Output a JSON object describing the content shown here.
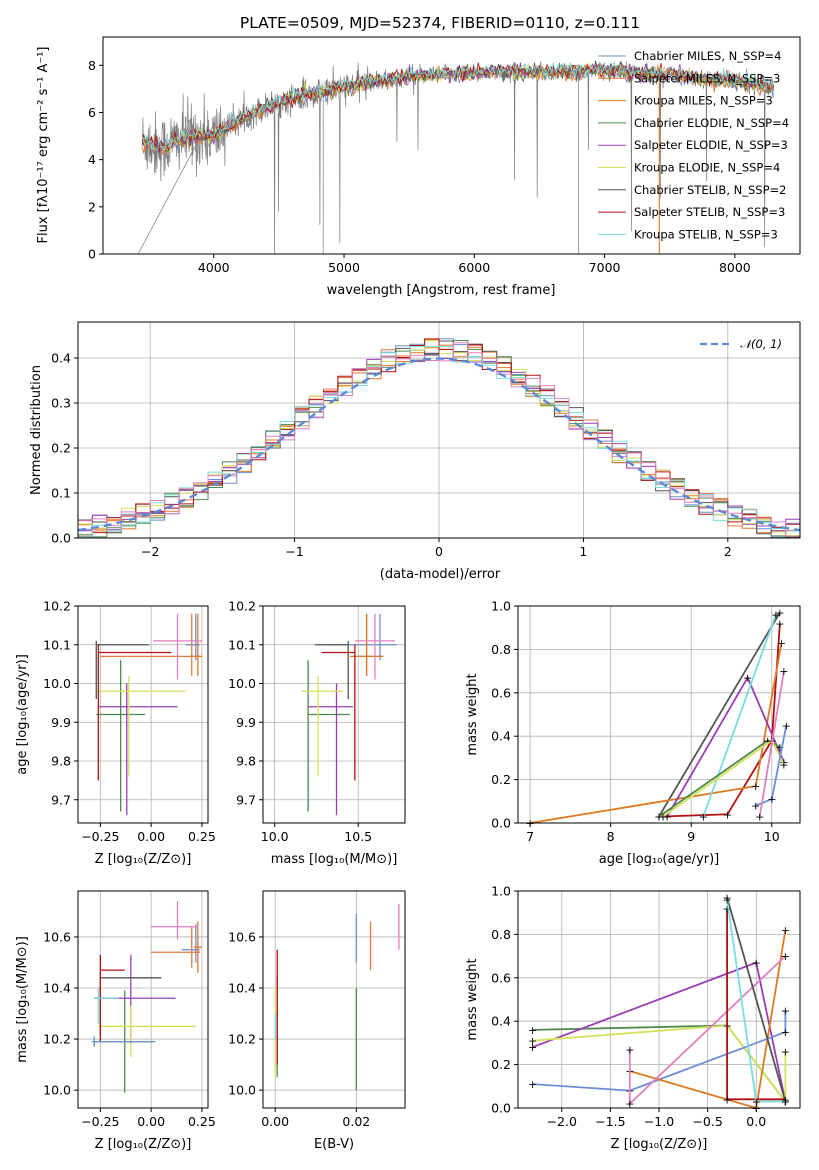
{
  "title": "PLATE=0509, MJD=52374, FIBERID=0110, z=0.111",
  "colors": {
    "chabrier_miles": "#6a8fd6",
    "salpeter_miles": "#e9793b",
    "kroupa_miles": "#dd7a22",
    "chabrier_elodie": "#4e8a4e",
    "salpeter_elodie": "#9a3db5",
    "kroupa_elodie": "#d5e15a",
    "chabrier_stelib": "#555555",
    "salpeter_stelib": "#b01010",
    "kroupa_stelib": "#79dde0",
    "data": "#7a7a7a",
    "normal": "#5b8ad6",
    "pink": "#e37fbf"
  },
  "chart_data": [
    {
      "type": "line",
      "xlabel": "wavelength [Angstrom, rest frame]",
      "ylabel": "Flux [fλ10⁻¹⁷ erg cm⁻² s⁻¹ A⁻¹]",
      "xlim": [
        3150,
        8500
      ],
      "ylim": [
        0,
        9.2
      ],
      "xticks": [
        "4000",
        "5000",
        "6000",
        "7000",
        "8000"
      ],
      "yticks": [
        "0",
        "2",
        "4",
        "6",
        "8"
      ],
      "legend_position": "upper-right",
      "legend": [
        "Chabrier MILES, N_SSP=4",
        "Salpeter MILES, N_SSP=3",
        "Kroupa MILES, N_SSP=3",
        "Chabrier ELODIE, N_SSP=4",
        "Salpeter ELODIE, N_SSP=3",
        "Kroupa ELODIE, N_SSP=4",
        "Chabrier STELIB, N_SSP=2",
        "Salpeter STELIB, N_SSP=3",
        "Kroupa STELIB, N_SSP=3"
      ],
      "continuum": {
        "x": [
          3450,
          3600,
          3800,
          4000,
          4300,
          4600,
          5000,
          5500,
          6000,
          6500,
          7000,
          7500,
          8000,
          8300
        ],
        "y": [
          4.8,
          4.5,
          5.0,
          5.0,
          6.0,
          6.6,
          7.1,
          7.5,
          7.7,
          7.7,
          7.8,
          7.6,
          7.3,
          7.1
        ]
      }
    },
    {
      "type": "histogram",
      "xlabel": "(data-model)/error",
      "ylabel": "Normed distribution",
      "xlim": [
        -2.5,
        2.5
      ],
      "ylim": [
        0,
        0.48
      ],
      "xticks": [
        "−2",
        "−1",
        "0",
        "1",
        "2"
      ],
      "yticks": [
        "0.0",
        "0.1",
        "0.2",
        "0.3",
        "0.4"
      ],
      "grid": true,
      "legend": "𝒩(0, 1)",
      "bin_width": 0.1
    },
    {
      "type": "errorbar",
      "xlabel": "Z [log₁₀(Z/Z⊙)]",
      "ylabel": "age  [log₁₀(age/yr)]",
      "xlim": [
        -0.36,
        0.28
      ],
      "ylim": [
        9.64,
        10.2
      ],
      "xticks": [
        "−0.25",
        "0.00",
        "0.25"
      ],
      "yticks": [
        "9.7",
        "9.8",
        "9.9",
        "10.0",
        "10.1",
        "10.2"
      ],
      "grid": true,
      "points": [
        {
          "x": 0.22,
          "y": 10.1,
          "xerr": [
            0.05,
            0.02
          ],
          "yerr": [
            0.04,
            0.08
          ],
          "c": "chabrier_miles"
        },
        {
          "x": 0.2,
          "y": 10.07,
          "xerr": [
            0.45,
            0.04
          ],
          "yerr": [
            0.05,
            0.11
          ],
          "c": "salpeter_miles"
        },
        {
          "x": 0.23,
          "y": 10.07,
          "xerr": [
            0.03,
            0.02
          ],
          "yerr": [
            0.05,
            0.11
          ],
          "c": "kroupa_miles"
        },
        {
          "x": -0.15,
          "y": 9.92,
          "xerr": [
            0.12,
            0.12
          ],
          "yerr": [
            0.25,
            0.14
          ],
          "c": "chabrier_elodie"
        },
        {
          "x": -0.12,
          "y": 9.94,
          "xerr": [
            0.14,
            0.25
          ],
          "yerr": [
            0.28,
            0.06
          ],
          "c": "salpeter_elodie"
        },
        {
          "x": -0.11,
          "y": 9.98,
          "xerr": [
            0.16,
            0.28
          ],
          "yerr": [
            0.22,
            0.04
          ],
          "c": "kroupa_elodie"
        },
        {
          "x": -0.27,
          "y": 10.1,
          "xerr": [
            0.0,
            0.26
          ],
          "yerr": [
            0.14,
            0.01
          ],
          "c": "chabrier_stelib"
        },
        {
          "x": -0.26,
          "y": 10.08,
          "xerr": [
            0.0,
            0.36
          ],
          "yerr": [
            0.33,
            0.02
          ],
          "c": "salpeter_stelib"
        },
        {
          "x": 0.13,
          "y": 10.11,
          "xerr": [
            0.12,
            0.12
          ],
          "yerr": [
            0.1,
            0.07
          ],
          "c": "pink"
        }
      ]
    },
    {
      "type": "errorbar",
      "xlabel": "mass [log₁₀(M/M⊙)]",
      "ylabel": "",
      "xlim": [
        9.93,
        10.78
      ],
      "ylim": [
        9.64,
        10.2
      ],
      "xticks": [
        "10.0",
        "10.5"
      ],
      "yticks": [
        "9.7",
        "9.8",
        "9.9",
        "10.0",
        "10.1",
        "10.2"
      ],
      "grid": true,
      "points": [
        {
          "x": 10.63,
          "y": 10.1,
          "xerr": [
            0.3,
            0.1
          ],
          "yerr": [
            0.04,
            0.08
          ],
          "c": "chabrier_miles"
        },
        {
          "x": 10.55,
          "y": 10.07,
          "xerr": [
            0.1,
            0.1
          ],
          "yerr": [
            0.05,
            0.11
          ],
          "c": "salpeter_miles"
        },
        {
          "x": 10.55,
          "y": 10.07,
          "xerr": [
            0.05,
            0.1
          ],
          "yerr": [
            0.05,
            0.11
          ],
          "c": "kroupa_miles"
        },
        {
          "x": 10.2,
          "y": 9.92,
          "xerr": [
            0.0,
            0.25
          ],
          "yerr": [
            0.25,
            0.14
          ],
          "c": "chabrier_elodie"
        },
        {
          "x": 10.37,
          "y": 9.94,
          "xerr": [
            0.17,
            0.1
          ],
          "yerr": [
            0.28,
            0.06
          ],
          "c": "salpeter_elodie"
        },
        {
          "x": 10.26,
          "y": 9.98,
          "xerr": [
            0.1,
            0.15
          ],
          "yerr": [
            0.22,
            0.04
          ],
          "c": "kroupa_elodie"
        },
        {
          "x": 10.44,
          "y": 10.1,
          "xerr": [
            0.2,
            0.0
          ],
          "yerr": [
            0.14,
            0.01
          ],
          "c": "chabrier_stelib"
        },
        {
          "x": 10.48,
          "y": 10.08,
          "xerr": [
            0.2,
            0.0
          ],
          "yerr": [
            0.33,
            0.02
          ],
          "c": "salpeter_stelib"
        },
        {
          "x": 10.6,
          "y": 10.11,
          "xerr": [
            0.12,
            0.12
          ],
          "yerr": [
            0.1,
            0.07
          ],
          "c": "pink"
        }
      ]
    },
    {
      "type": "line",
      "xlabel": "age  [log₁₀(age/yr)]",
      "ylabel": "mass weight",
      "xlim": [
        6.85,
        10.35
      ],
      "ylim": [
        0,
        1.0
      ],
      "xticks": [
        "7",
        "8",
        "9",
        "10"
      ],
      "yticks": [
        "0.0",
        "0.2",
        "0.4",
        "0.6",
        "0.8",
        "1.0"
      ],
      "grid": true
    },
    {
      "type": "errorbar",
      "xlabel": "Z [log₁₀(Z/Z⊙)]",
      "ylabel": "mass [log₁₀(M/M⊙)]",
      "xlim": [
        -0.36,
        0.28
      ],
      "ylim": [
        9.93,
        10.78
      ],
      "xticks": [
        "−0.25",
        "0.00",
        "0.25"
      ],
      "yticks": [
        "10.0",
        "10.2",
        "10.4",
        "10.6"
      ],
      "grid": true
    },
    {
      "type": "errorbar",
      "xlabel": "E(B-V)",
      "ylabel": "",
      "xlim": [
        -0.003,
        0.032
      ],
      "ylim": [
        9.93,
        10.78
      ],
      "xticks": [
        "0.00",
        "0.02"
      ],
      "yticks": [
        "10.0",
        "10.2",
        "10.4",
        "10.6"
      ],
      "grid": true
    },
    {
      "type": "line",
      "xlabel": "Z [log₁₀(Z/Z⊙)]",
      "ylabel": "mass weight",
      "xlim": [
        -2.45,
        0.45
      ],
      "ylim": [
        0,
        1.0
      ],
      "xticks": [
        "−2.0",
        "−1.5",
        "−1.0",
        "−0.5",
        "0.0"
      ],
      "yticks": [
        "0.0",
        "0.2",
        "0.4",
        "0.6",
        "0.8",
        "1.0"
      ],
      "grid": true
    }
  ]
}
